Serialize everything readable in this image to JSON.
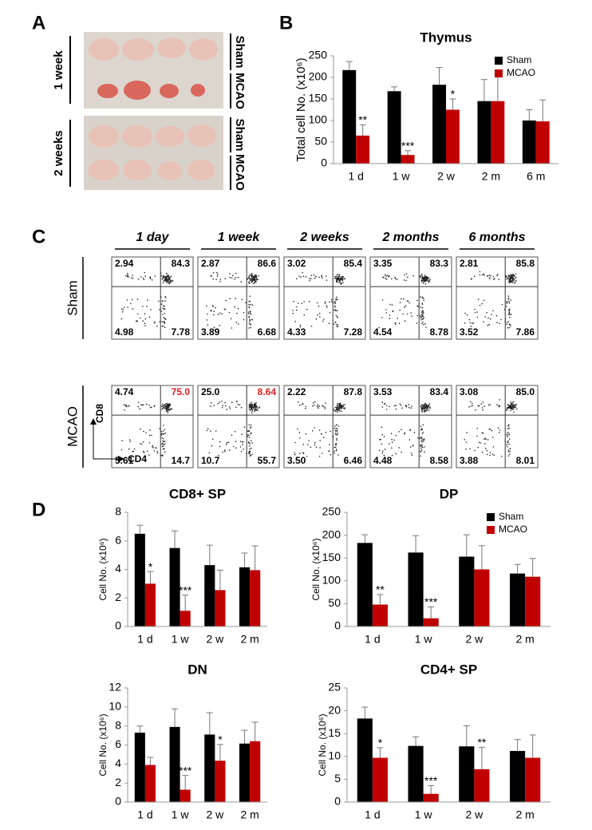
{
  "panel_labels": [
    "A",
    "B",
    "C",
    "D"
  ],
  "photo": {
    "rows": [
      {
        "label": "1 week",
        "groups": [
          "Sham",
          "MCAO"
        ]
      },
      {
        "label": "2 weeks",
        "groups": [
          "Sham",
          "MCAO"
        ]
      }
    ]
  },
  "flow_cytometry": {
    "columns": [
      "1 day",
      "1 week",
      "2 weeks",
      "2 months",
      "6 months"
    ],
    "y_axis": "CD8",
    "x_axis": "CD4",
    "highlight_color": "#e02020",
    "highlight": [
      {
        "row": 1,
        "column": 0,
        "quadrant": 1
      },
      {
        "row": 1,
        "column": 1,
        "quadrant": 1
      }
    ],
    "rows": [
      {
        "label": "Sham",
        "quadrants": [
          [
            "2.94",
            "84.3",
            "4.98",
            "7.78"
          ],
          [
            "2.87",
            "86.6",
            "3.89",
            "6.68"
          ],
          [
            "3.02",
            "85.4",
            "4.33",
            "7.28"
          ],
          [
            "3.35",
            "83.3",
            "4.54",
            "8.78"
          ],
          [
            "2.81",
            "85.8",
            "3.52",
            "7.86"
          ]
        ]
      },
      {
        "label": "MCAO",
        "quadrants": [
          [
            "4.74",
            "75.0",
            "5.61",
            "14.7"
          ],
          [
            "25.0",
            "8.64",
            "10.7",
            "55.7"
          ],
          [
            "2.22",
            "87.8",
            "3.50",
            "6.46"
          ],
          [
            "3.53",
            "83.4",
            "4.48",
            "8.58"
          ],
          [
            "3.08",
            "85.0",
            "3.88",
            "8.01"
          ]
        ]
      }
    ]
  },
  "chart_data": [
    {
      "type": "bar",
      "title": "Thymus",
      "y_label": "Total cell No. (x10⁶)",
      "categories": [
        "1 d",
        "1 w",
        "2 w",
        "2 m",
        "6 m"
      ],
      "series": [
        {
          "name": "Sham",
          "color": "#000000",
          "values": [
            217,
            168,
            183,
            145,
            100
          ],
          "errors": [
            20,
            10,
            40,
            50,
            25
          ]
        },
        {
          "name": "MCAO",
          "color": "#c00000",
          "values": [
            65,
            20,
            125,
            145,
            98
          ],
          "errors": [
            25,
            10,
            25,
            58,
            50
          ],
          "annotations": [
            "**",
            "***",
            "*",
            null,
            null
          ]
        }
      ],
      "ylim": [
        0,
        250
      ],
      "yticks": [
        0,
        50,
        100,
        150,
        200,
        250
      ],
      "legend": "upper right"
    },
    {
      "type": "bar",
      "title": "CD8+ SP",
      "y_label": "Cell No. (x10⁶)",
      "categories": [
        "1 d",
        "1 w",
        "2 w",
        "2 m"
      ],
      "series": [
        {
          "name": "Sham",
          "color": "#000000",
          "values": [
            6.5,
            5.5,
            4.3,
            4.15
          ],
          "errors": [
            0.6,
            1.2,
            1.4,
            1.0
          ]
        },
        {
          "name": "MCAO",
          "color": "#c00000",
          "values": [
            3.0,
            1.1,
            2.55,
            3.95
          ],
          "errors": [
            0.85,
            1.1,
            1.4,
            1.7
          ],
          "annotations": [
            "*",
            "***",
            null,
            null
          ]
        }
      ],
      "ylim": [
        0,
        8
      ],
      "yticks": [
        0,
        2,
        4,
        6,
        8
      ]
    },
    {
      "type": "bar",
      "title": "DP",
      "y_label": "Cell No. (x10⁶)",
      "categories": [
        "1 d",
        "1 w",
        "2 w",
        "2 m"
      ],
      "series": [
        {
          "name": "Sham",
          "color": "#000000",
          "values": [
            183,
            162,
            153,
            116
          ],
          "errors": [
            18,
            37,
            48,
            20
          ]
        },
        {
          "name": "MCAO",
          "color": "#c00000",
          "values": [
            48,
            18,
            125,
            109
          ],
          "errors": [
            22,
            25,
            52,
            40
          ],
          "annotations": [
            "**",
            "***",
            null,
            null
          ]
        }
      ],
      "ylim": [
        0,
        250
      ],
      "yticks": [
        0,
        50,
        100,
        150,
        200,
        250
      ],
      "legend": "upper right"
    },
    {
      "type": "bar",
      "title": "DN",
      "y_label": "Cell No. (x10⁶)",
      "categories": [
        "1 d",
        "1 w",
        "2 w",
        "2 m"
      ],
      "series": [
        {
          "name": "Sham",
          "color": "#000000",
          "values": [
            7.3,
            7.9,
            7.1,
            6.15
          ],
          "errors": [
            0.7,
            1.9,
            2.3,
            1.4
          ]
        },
        {
          "name": "MCAO",
          "color": "#c00000",
          "values": [
            3.9,
            1.3,
            4.35,
            6.4
          ],
          "errors": [
            0.8,
            1.5,
            1.7,
            2.0
          ],
          "annotations": [
            null,
            "***",
            "*",
            null
          ]
        }
      ],
      "ylim": [
        0,
        12
      ],
      "yticks": [
        0,
        2,
        4,
        6,
        8,
        10,
        12
      ]
    },
    {
      "type": "bar",
      "title": "CD4+ SP",
      "y_label": "Cell No. (x10⁶)",
      "categories": [
        "1 d",
        "1 w",
        "2 w",
        "2 m"
      ],
      "series": [
        {
          "name": "Sham",
          "color": "#000000",
          "values": [
            18.3,
            12.3,
            12.2,
            11.2
          ],
          "errors": [
            2.5,
            2.0,
            4.5,
            2.5
          ]
        },
        {
          "name": "MCAO",
          "color": "#c00000",
          "values": [
            9.7,
            1.8,
            7.2,
            9.7
          ],
          "errors": [
            2.2,
            1.8,
            4.8,
            5.0
          ],
          "annotations": [
            "*",
            "***",
            "**",
            null
          ]
        }
      ],
      "ylim": [
        0,
        25
      ],
      "yticks": [
        0,
        5,
        10,
        15,
        20,
        25
      ]
    }
  ]
}
